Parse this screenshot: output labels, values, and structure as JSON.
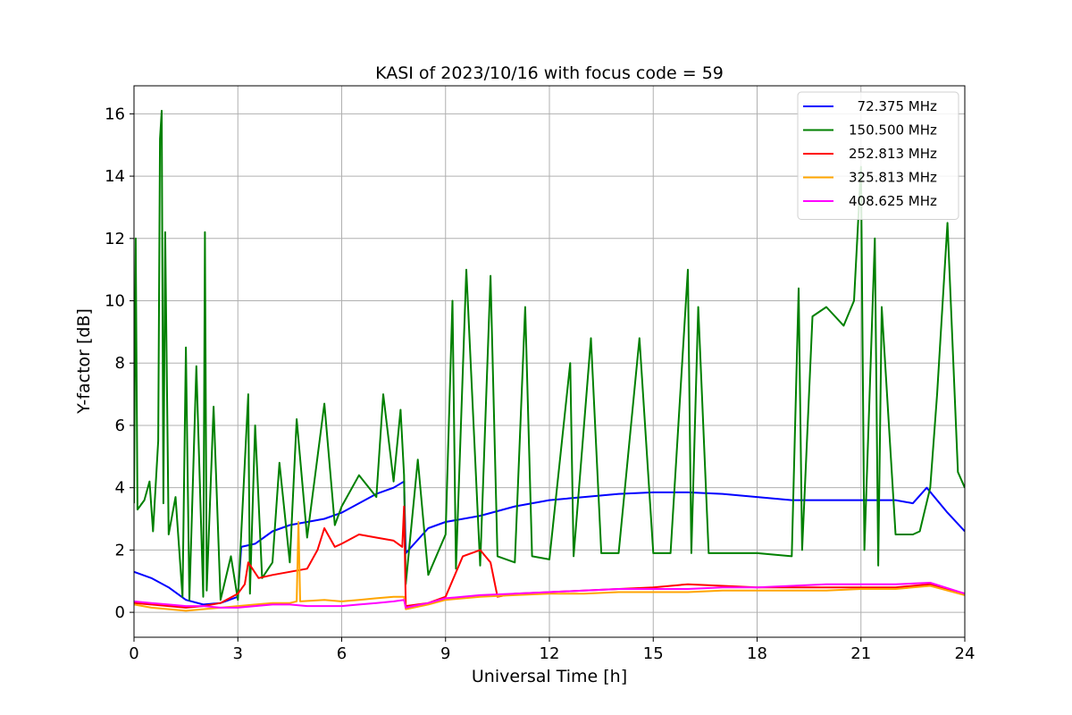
{
  "chart_data": {
    "type": "line",
    "title": "KASI of 2023/10/16 with focus code = 59",
    "xlabel": "Universal Time [h]",
    "ylabel": "Y-factor [dB]",
    "xlim": [
      0,
      24
    ],
    "ylim": [
      -0.8,
      16.9
    ],
    "xticks": [
      0,
      3,
      6,
      9,
      12,
      15,
      18,
      21,
      24
    ],
    "yticks": [
      0,
      2,
      4,
      6,
      8,
      10,
      12,
      14,
      16
    ],
    "grid": true,
    "legend_position": "top-right",
    "series": [
      {
        "name": "  72.375 MHz",
        "color": "#0000ff",
        "x": [
          0,
          0.5,
          1.0,
          1.5,
          2.0,
          2.5,
          3.0,
          3.1,
          3.5,
          4.0,
          4.5,
          5.0,
          5.5,
          6.0,
          6.5,
          7.0,
          7.5,
          7.8,
          7.85,
          8.5,
          9.0,
          10,
          11,
          12,
          13,
          14,
          15,
          16,
          17,
          18,
          19,
          20,
          21,
          22,
          22.5,
          22.9,
          23.5,
          24
        ],
        "y": [
          1.3,
          1.1,
          0.8,
          0.4,
          0.25,
          0.3,
          0.5,
          2.1,
          2.2,
          2.6,
          2.8,
          2.9,
          3.0,
          3.2,
          3.5,
          3.8,
          4.0,
          4.2,
          1.9,
          2.7,
          2.9,
          3.1,
          3.4,
          3.6,
          3.7,
          3.8,
          3.85,
          3.85,
          3.8,
          3.7,
          3.6,
          3.6,
          3.6,
          3.6,
          3.5,
          4.0,
          3.2,
          2.6
        ]
      },
      {
        "name": "150.500 MHz",
        "color": "#008000",
        "x": [
          0,
          0.05,
          0.1,
          0.3,
          0.45,
          0.55,
          0.7,
          0.75,
          0.8,
          0.85,
          0.9,
          1.0,
          1.2,
          1.4,
          1.5,
          1.6,
          1.8,
          2.0,
          2.05,
          2.1,
          2.3,
          2.5,
          2.8,
          3.0,
          3.3,
          3.35,
          3.5,
          3.7,
          4.0,
          4.2,
          4.5,
          4.7,
          5.0,
          5.5,
          5.8,
          6.0,
          6.5,
          7.0,
          7.2,
          7.5,
          7.7,
          7.8,
          7.85,
          8.2,
          8.5,
          9.0,
          9.2,
          9.3,
          9.6,
          10.0,
          10.3,
          10.5,
          11.0,
          11.3,
          11.5,
          12.0,
          12.6,
          12.7,
          13.2,
          13.5,
          14.0,
          14.6,
          15.0,
          15.5,
          16.0,
          16.1,
          16.3,
          16.6,
          17.0,
          18.0,
          19.0,
          19.2,
          19.3,
          19.6,
          20.0,
          20.5,
          20.8,
          21.0,
          21.1,
          21.4,
          21.5,
          21.6,
          22.0,
          22.5,
          22.7,
          23.0,
          23.2,
          23.5,
          23.8,
          24
        ],
        "y": [
          3.5,
          12.0,
          3.3,
          3.6,
          4.2,
          2.6,
          5.5,
          15.2,
          16.1,
          3.5,
          12.2,
          2.5,
          3.7,
          0.5,
          8.5,
          0.4,
          7.9,
          0.5,
          12.2,
          0.7,
          6.6,
          0.4,
          1.8,
          0.4,
          7.0,
          0.6,
          6.0,
          1.1,
          1.6,
          4.8,
          1.6,
          6.2,
          2.4,
          6.7,
          2.8,
          3.4,
          4.4,
          3.7,
          7.0,
          4.2,
          6.5,
          4.4,
          0.9,
          4.9,
          1.2,
          2.5,
          10.0,
          1.4,
          11.0,
          1.5,
          10.8,
          1.8,
          1.6,
          9.8,
          1.8,
          1.7,
          8.0,
          1.8,
          8.8,
          1.9,
          1.9,
          8.8,
          1.9,
          1.9,
          11.0,
          1.9,
          9.8,
          1.9,
          1.9,
          1.9,
          1.8,
          10.4,
          2.0,
          9.5,
          9.8,
          9.2,
          10.0,
          14.3,
          2.0,
          12.0,
          1.5,
          9.8,
          2.5,
          2.5,
          2.6,
          4.0,
          7.0,
          12.5,
          4.5,
          4.0
        ]
      },
      {
        "name": "252.813 MHz",
        "color": "#ff0000",
        "x": [
          0,
          0.5,
          1.0,
          1.5,
          2.0,
          2.5,
          3.0,
          3.2,
          3.3,
          3.6,
          4.0,
          4.5,
          5.0,
          5.3,
          5.5,
          5.8,
          6.0,
          6.5,
          7.0,
          7.5,
          7.75,
          7.8,
          7.85,
          8.5,
          9.0,
          9.5,
          10.0,
          10.3,
          10.5,
          11.0,
          12.0,
          13.0,
          14.0,
          15.0,
          16.0,
          17.0,
          18.0,
          19.0,
          20.0,
          21.0,
          22.0,
          23.0,
          24
        ],
        "y": [
          0.3,
          0.25,
          0.2,
          0.15,
          0.2,
          0.3,
          0.6,
          0.9,
          1.6,
          1.1,
          1.2,
          1.3,
          1.4,
          2.0,
          2.7,
          2.1,
          2.2,
          2.5,
          2.4,
          2.3,
          2.1,
          3.4,
          0.2,
          0.3,
          0.5,
          1.8,
          2.0,
          1.6,
          0.5,
          0.6,
          0.65,
          0.7,
          0.75,
          0.8,
          0.9,
          0.85,
          0.8,
          0.8,
          0.8,
          0.8,
          0.8,
          0.9,
          0.6
        ]
      },
      {
        "name": "325.813 MHz",
        "color": "#ffa500",
        "x": [
          0,
          0.5,
          1.0,
          1.5,
          2.0,
          2.5,
          3.0,
          3.5,
          4.0,
          4.5,
          4.7,
          4.75,
          4.8,
          5.5,
          6.0,
          6.5,
          7.0,
          7.5,
          7.8,
          7.85,
          8.5,
          9.0,
          10.0,
          11.0,
          12.0,
          13.0,
          14.0,
          15.0,
          16.0,
          17.0,
          18.0,
          19.0,
          20.0,
          21.0,
          22.0,
          23.0,
          24
        ],
        "y": [
          0.25,
          0.15,
          0.1,
          0.05,
          0.1,
          0.15,
          0.2,
          0.25,
          0.3,
          0.3,
          0.35,
          2.9,
          0.35,
          0.4,
          0.35,
          0.4,
          0.45,
          0.5,
          0.5,
          0.1,
          0.25,
          0.4,
          0.5,
          0.55,
          0.6,
          0.6,
          0.65,
          0.65,
          0.65,
          0.7,
          0.7,
          0.7,
          0.7,
          0.75,
          0.75,
          0.85,
          0.55
        ]
      },
      {
        "name": "408.625 MHz",
        "color": "#ff00ff",
        "x": [
          0,
          0.5,
          1.0,
          1.5,
          2.0,
          2.5,
          3.0,
          3.5,
          4.0,
          4.5,
          5.0,
          5.5,
          6.0,
          6.5,
          7.0,
          7.5,
          7.8,
          7.85,
          8.5,
          9.0,
          10.0,
          11.0,
          12.0,
          13.0,
          14.0,
          15.0,
          16.0,
          17.0,
          18.0,
          19.0,
          20.0,
          21.0,
          22.0,
          23.0,
          24
        ],
        "y": [
          0.35,
          0.3,
          0.25,
          0.2,
          0.2,
          0.15,
          0.15,
          0.2,
          0.25,
          0.25,
          0.2,
          0.2,
          0.2,
          0.25,
          0.3,
          0.35,
          0.4,
          0.15,
          0.3,
          0.45,
          0.55,
          0.6,
          0.65,
          0.7,
          0.75,
          0.75,
          0.75,
          0.8,
          0.8,
          0.85,
          0.9,
          0.9,
          0.9,
          0.95,
          0.6
        ]
      }
    ]
  }
}
